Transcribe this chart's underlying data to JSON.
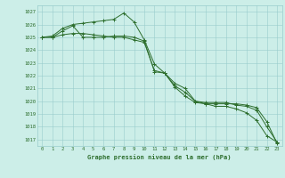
{
  "title": "Graphe pression niveau de la mer (hPa)",
  "bg_color": "#cceee8",
  "grid_color": "#99cccc",
  "line_color": "#2d6e2d",
  "xlim": [
    -0.5,
    23.5
  ],
  "ylim": [
    1016.5,
    1027.5
  ],
  "yticks": [
    1017,
    1018,
    1019,
    1020,
    1021,
    1022,
    1023,
    1024,
    1025,
    1026,
    1027
  ],
  "xticks": [
    0,
    1,
    2,
    3,
    4,
    5,
    6,
    7,
    8,
    9,
    10,
    11,
    12,
    13,
    14,
    15,
    16,
    17,
    18,
    19,
    20,
    21,
    22,
    23
  ],
  "series": [
    [
      1025.0,
      1025.1,
      1025.7,
      1026.0,
      1026.1,
      1026.2,
      1026.3,
      1026.4,
      1026.9,
      1026.2,
      1024.8,
      1022.9,
      1022.2,
      1021.4,
      1021.0,
      1020.0,
      1019.8,
      1019.6,
      1019.6,
      1019.4,
      1019.1,
      1018.5,
      1017.3,
      1016.8
    ],
    [
      1025.0,
      1025.0,
      1025.5,
      1025.9,
      1025.0,
      1025.0,
      1025.0,
      1025.1,
      1025.1,
      1025.0,
      1024.7,
      1022.3,
      1022.2,
      1021.1,
      1020.4,
      1019.9,
      1019.8,
      1019.8,
      1019.8,
      1019.8,
      1019.7,
      1019.5,
      1018.4,
      1016.7
    ],
    [
      1025.0,
      1025.0,
      1025.2,
      1025.3,
      1025.3,
      1025.2,
      1025.1,
      1025.0,
      1025.0,
      1024.8,
      1024.6,
      1022.4,
      1022.2,
      1021.2,
      1020.7,
      1020.0,
      1019.9,
      1019.9,
      1019.9,
      1019.7,
      1019.6,
      1019.3,
      1018.0,
      1016.8
    ]
  ]
}
